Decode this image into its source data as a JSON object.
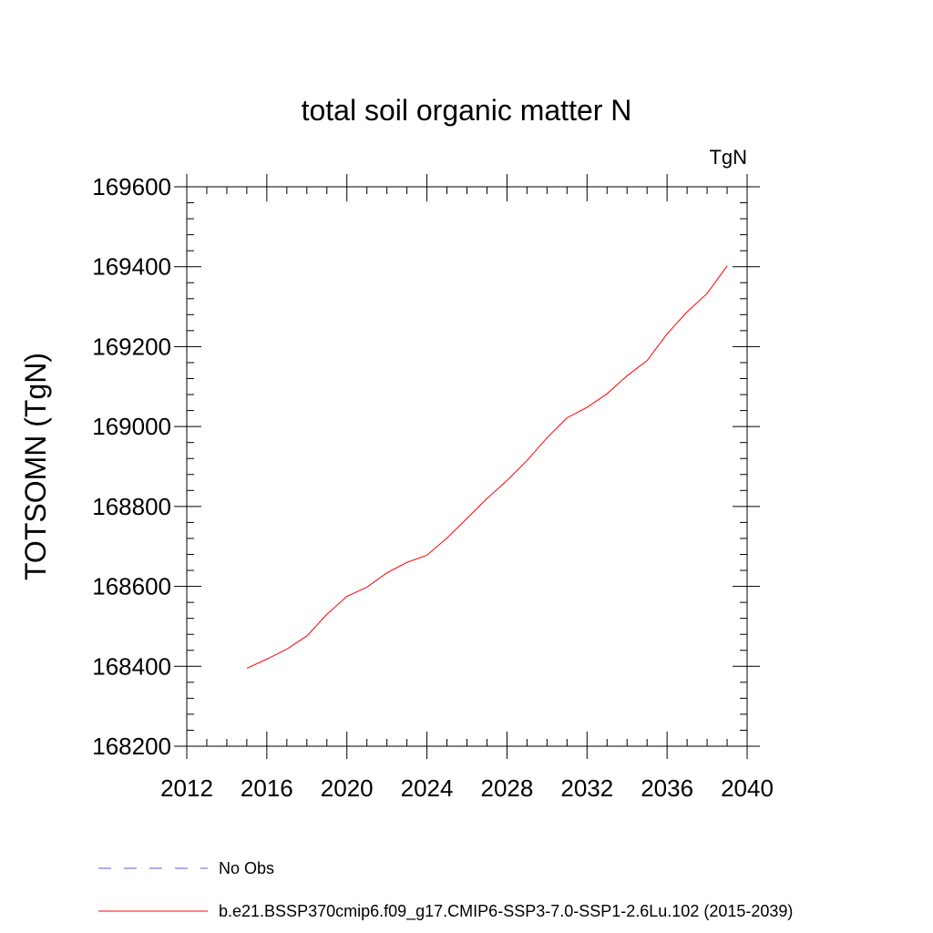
{
  "chart_data": {
    "type": "line",
    "title": "total soil organic matter N",
    "units_label": "TgN",
    "ylabel": "TOTSOMN  (TgN)",
    "xlabel": "",
    "xlim": [
      2012,
      2040
    ],
    "ylim": [
      168200,
      169600
    ],
    "x_ticks": [
      2012,
      2016,
      2020,
      2024,
      2028,
      2032,
      2036,
      2040
    ],
    "y_ticks": [
      168200,
      168400,
      168600,
      168800,
      169000,
      169200,
      169400,
      169600
    ],
    "grid": false,
    "series": [
      {
        "name": "b.e21.BSSP370cmip6.f09_g17.CMIP6-SSP3-7.0-SSP1-2.6Lu.102 (2015-2039)",
        "color": "#ff0000",
        "x": [
          2015,
          2016,
          2017,
          2018,
          2019,
          2020,
          2021,
          2022,
          2023,
          2024,
          2025,
          2026,
          2027,
          2028,
          2029,
          2030,
          2031,
          2032,
          2033,
          2034,
          2035,
          2036,
          2037,
          2038,
          2039
        ],
        "y": [
          168395,
          168418,
          168443,
          168476,
          168530,
          168575,
          168598,
          168634,
          168660,
          168678,
          168721,
          168770,
          168820,
          168865,
          168915,
          168972,
          169022,
          169048,
          169082,
          169127,
          169165,
          169232,
          169287,
          169333,
          169402
        ]
      }
    ],
    "legend": [
      {
        "label": "No Obs",
        "color": "#6a5acd",
        "style": "dashed"
      },
      {
        "label": "b.e21.BSSP370cmip6.f09_g17.CMIP6-SSP3-7.0-SSP1-2.6Lu.102 (2015-2039)",
        "color": "#ff0000",
        "style": "solid"
      }
    ]
  }
}
